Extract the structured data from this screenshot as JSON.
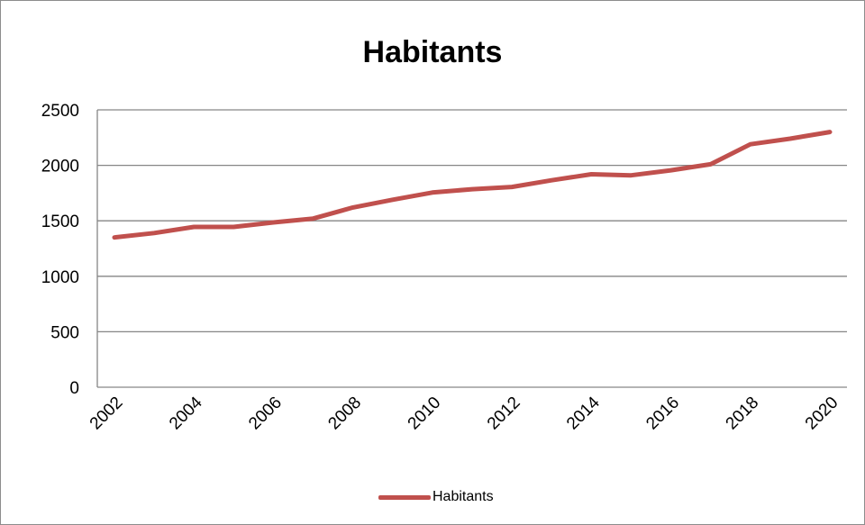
{
  "chart_data": {
    "type": "line",
    "title": "Habitants",
    "xlabel": "",
    "ylabel": "",
    "x": [
      2002,
      2003,
      2004,
      2005,
      2006,
      2007,
      2008,
      2009,
      2010,
      2011,
      2012,
      2013,
      2014,
      2015,
      2016,
      2017,
      2018,
      2019,
      2020
    ],
    "x_tick_labels": [
      "2002",
      "2004",
      "2006",
      "2008",
      "2010",
      "2012",
      "2014",
      "2016",
      "2018",
      "2020"
    ],
    "ylim": [
      0,
      2500
    ],
    "y_ticks": [
      0,
      500,
      1000,
      1500,
      2000,
      2500
    ],
    "grid": true,
    "legend_position": "bottom",
    "series": [
      {
        "name": "Habitants",
        "color": "#C0504D",
        "values": [
          1350,
          1390,
          1445,
          1445,
          1485,
          1520,
          1620,
          1690,
          1755,
          1785,
          1805,
          1865,
          1920,
          1910,
          1955,
          2010,
          2190,
          2240,
          2300
        ]
      }
    ]
  }
}
